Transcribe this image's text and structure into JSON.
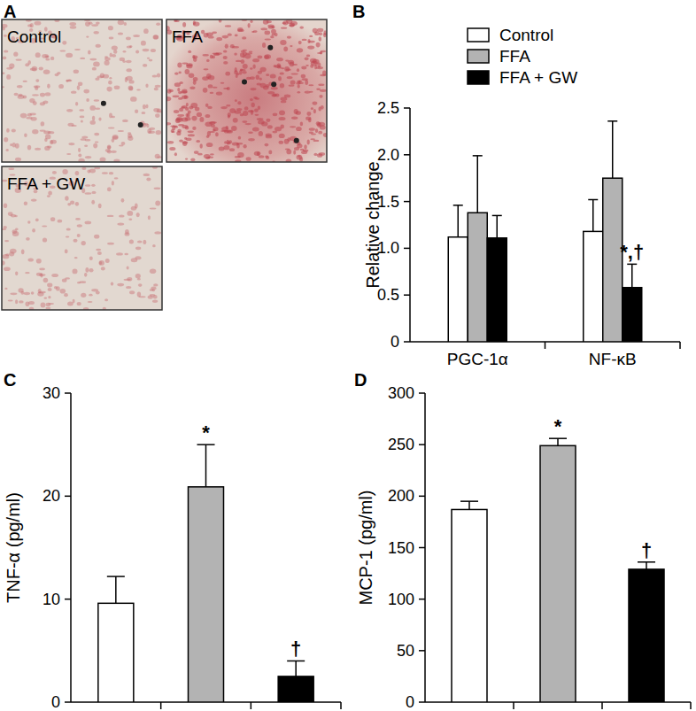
{
  "image_panel": {
    "panel_label": "A",
    "images": [
      "Control",
      "FFA",
      "FFA + GW"
    ]
  },
  "chart_data": [
    {
      "panel_label": "B",
      "type": "bar",
      "categories": [
        "PGC-1α",
        "NF-κB"
      ],
      "y_label": "Relative change",
      "ylim": [
        0,
        2.5
      ],
      "yticks": [
        0,
        0.5,
        {
          "value": 1,
          "label": "1.0"
        },
        1.5,
        {
          "value": 2,
          "label": "2.0"
        },
        2.5
      ],
      "legend": "top-left",
      "series": [
        {
          "name": "Control",
          "color": "#ffffff",
          "values": [
            1.12,
            1.18
          ],
          "errors": [
            0.34,
            0.34
          ]
        },
        {
          "name": "FFA",
          "color": "#b3b3b3",
          "values": [
            1.38,
            1.75
          ],
          "errors": [
            0.61,
            0.61
          ]
        },
        {
          "name": "FFA + GW",
          "color": "#000000",
          "values": [
            1.11,
            0.58
          ],
          "errors": [
            0.24,
            0.25
          ]
        }
      ],
      "annotations": [
        {
          "text": "*,†",
          "series": 2,
          "category": 1
        }
      ]
    },
    {
      "panel_label": "C",
      "type": "bar",
      "categories": [
        null,
        null,
        null
      ],
      "y_label": "TNF-α (pg/ml)",
      "ylim": [
        0,
        30
      ],
      "yticks": [
        0,
        10,
        20,
        30
      ],
      "values": [
        9.6,
        20.9,
        2.5
      ],
      "errors": [
        2.6,
        4.1,
        1.5
      ],
      "colors": [
        "#ffffff",
        "#b3b3b3",
        "#000000"
      ],
      "annotations": [
        {
          "text": "*",
          "category": 1
        },
        {
          "text": "†",
          "category": 2
        }
      ]
    },
    {
      "panel_label": "D",
      "type": "bar",
      "categories": [
        null,
        null,
        null
      ],
      "y_label": "MCP-1 (pg/ml)",
      "ylim": [
        0,
        300
      ],
      "yticks": [
        0,
        50,
        100,
        150,
        200,
        250,
        300
      ],
      "values": [
        187,
        249,
        129
      ],
      "errors": [
        8,
        7,
        7
      ],
      "colors": [
        "#ffffff",
        "#b3b3b3",
        "#000000"
      ],
      "annotations": [
        {
          "text": "*",
          "category": 1
        },
        {
          "text": "†",
          "category": 2
        }
      ]
    }
  ]
}
